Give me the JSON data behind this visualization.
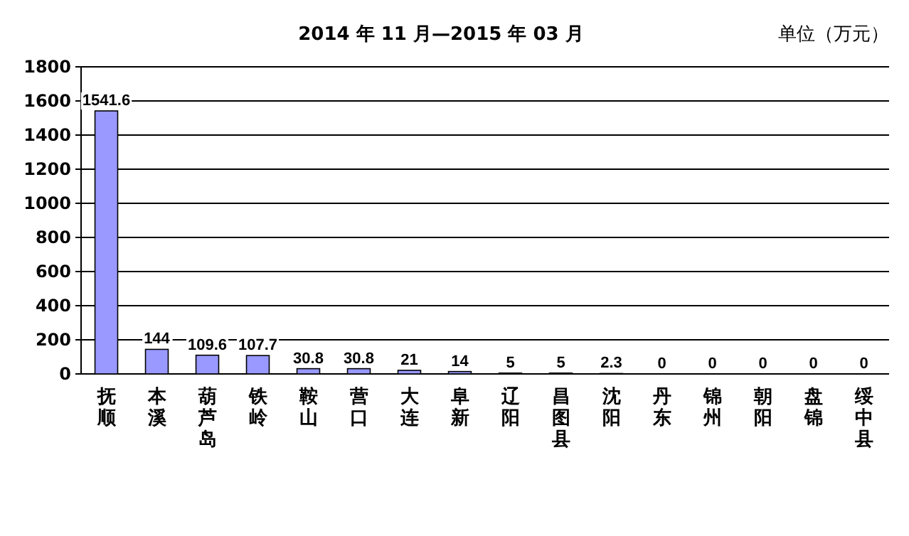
{
  "chart_data": {
    "type": "bar",
    "title": "2014 年 11 月—2015 年 03 月",
    "annotations": [
      "单位（万元）"
    ],
    "categories": [
      "抚顺",
      "本溪",
      "葫芦岛",
      "铁岭",
      "鞍山",
      "营口",
      "大连",
      "阜新",
      "辽阳",
      "昌图县",
      "沈阳",
      "丹东",
      "锦州",
      "朝阳",
      "盘锦",
      "绥中县"
    ],
    "values": [
      1541.6,
      144,
      109.6,
      107.7,
      30.8,
      30.8,
      21,
      14,
      5,
      5,
      2.3,
      0,
      0,
      0,
      0,
      0
    ],
    "color": "#9999ff",
    "ylim": [
      0,
      1800
    ],
    "yticks": [
      0,
      200,
      400,
      600,
      800,
      1000,
      1200,
      1400,
      1600,
      1800
    ],
    "grid": "y",
    "data_labels": true
  }
}
